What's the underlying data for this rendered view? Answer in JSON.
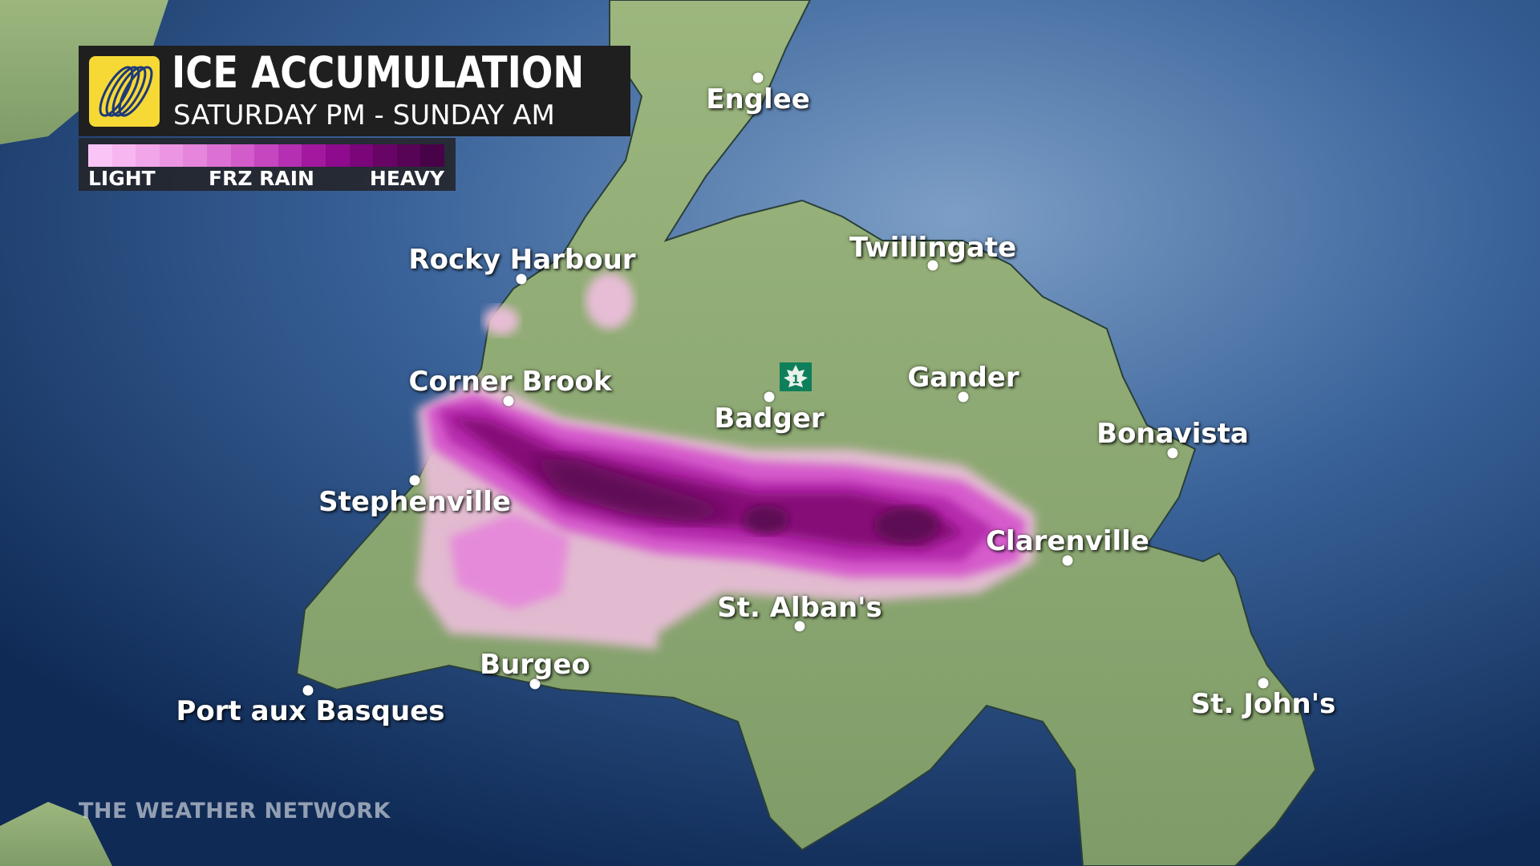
{
  "header": {
    "title": "ICE ACCUMULATION",
    "subtitle": "SATURDAY PM - SUNDAY AM",
    "logo": "weather-network-globe-logo"
  },
  "legend": {
    "labels": [
      "LIGHT",
      "FRZ RAIN",
      "HEAVY"
    ],
    "colors": [
      "#fbc4f6",
      "#f7b6f0",
      "#f2a6ea",
      "#ec96e3",
      "#e585dc",
      "#dc70d3",
      "#d25cca",
      "#c646bf",
      "#b52fb2",
      "#a2189f",
      "#8d0b8c",
      "#7a0679",
      "#680466",
      "#570356",
      "#480248"
    ]
  },
  "cities": [
    {
      "name": "Englee"
    },
    {
      "name": "Rocky Harbour"
    },
    {
      "name": "Twillingate"
    },
    {
      "name": "Corner Brook"
    },
    {
      "name": "Badger"
    },
    {
      "name": "Gander"
    },
    {
      "name": "Bonavista"
    },
    {
      "name": "Stephenville"
    },
    {
      "name": "Clarenville"
    },
    {
      "name": "St. Alban's"
    },
    {
      "name": "Burgeo"
    },
    {
      "name": "Port aux Basques"
    },
    {
      "name": "St. John's"
    }
  ],
  "highway_shield": {
    "number": "1",
    "icon": "trans-canada-maple-leaf-shield",
    "color": "#0e7f5a"
  },
  "watermark": "THE WEATHER NETWORK",
  "colors": {
    "ocean": "#1b3f6e",
    "land": "#8fac73",
    "ice_light": "#e8b7d6",
    "ice_heavy": "#5a0d4f"
  }
}
